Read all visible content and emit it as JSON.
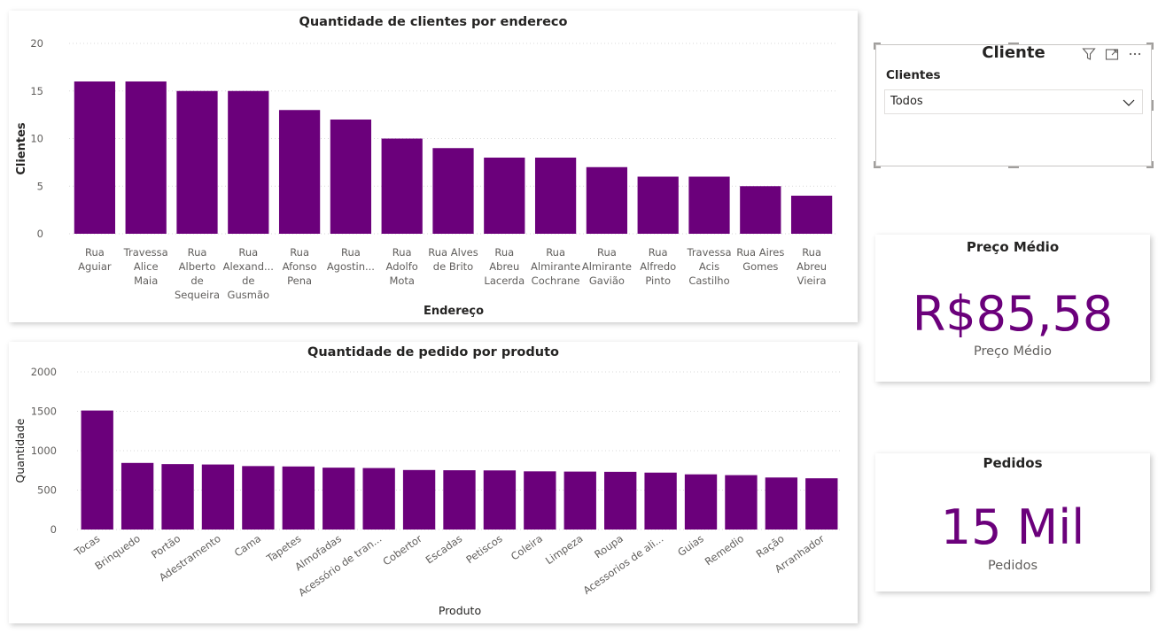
{
  "colors": {
    "bar": "#6b007b",
    "kpi": "#6b007b",
    "grid": "#d9d9d9"
  },
  "chart_data": [
    {
      "type": "bar",
      "title": "Quantidade de clientes por endereco",
      "xlabel": "Endereço",
      "ylabel": "Clientes",
      "ylim": [
        0,
        20
      ],
      "yticks": [
        0,
        5,
        10,
        15,
        20
      ],
      "grid": true,
      "categories": [
        [
          "Rua",
          "Aguiar"
        ],
        [
          "Travessa",
          "Alice",
          "Maia"
        ],
        [
          "Rua",
          "Alberto",
          "de",
          "Sequeira"
        ],
        [
          "Rua",
          "Alexand...",
          "de",
          "Gusmão"
        ],
        [
          "Rua",
          "Afonso",
          "Pena"
        ],
        [
          "Rua",
          "Agostin..."
        ],
        [
          "Rua",
          "Adolfo",
          "Mota"
        ],
        [
          "Rua Alves",
          "de Brito"
        ],
        [
          "Rua",
          "Abreu",
          "Lacerda"
        ],
        [
          "Rua",
          "Almirante",
          "Cochrane"
        ],
        [
          "Rua",
          "Almirante",
          "Gavião"
        ],
        [
          "Rua",
          "Alfredo",
          "Pinto"
        ],
        [
          "Travessa",
          "Acis",
          "Castilho"
        ],
        [
          "Rua Aires",
          "Gomes"
        ],
        [
          "Rua",
          "Abreu",
          "Vieira"
        ]
      ],
      "values": [
        16,
        16,
        15,
        15,
        13,
        12,
        10,
        9,
        8,
        8,
        7,
        6,
        6,
        5,
        4
      ]
    },
    {
      "type": "bar",
      "title": "Quantidade de pedido por produto",
      "xlabel": "Produto",
      "ylabel": "Quantidade",
      "ylim": [
        0,
        2000
      ],
      "yticks": [
        0,
        500,
        1000,
        1500,
        2000
      ],
      "grid": true,
      "categories": [
        "Tocas",
        "Brinquedo",
        "Portão",
        "Adestramento",
        "Cama",
        "Tapetes",
        "Almofadas",
        "Acessório de tran...",
        "Cobertor",
        "Escadas",
        "Petiscos",
        "Coleira",
        "Limpeza",
        "Roupa",
        "Acessorios de ali...",
        "Guias",
        "Remedio",
        "Ração",
        "Arranhador"
      ],
      "values": [
        1510,
        845,
        830,
        825,
        805,
        800,
        785,
        780,
        755,
        752,
        750,
        738,
        735,
        732,
        722,
        700,
        690,
        660,
        650
      ]
    }
  ],
  "slicer": {
    "title": "Cliente",
    "field_label": "Clientes",
    "selected": "Todos"
  },
  "kpis": [
    {
      "title": "Preço Médio",
      "value": "R$85,58",
      "label": "Preço Médio"
    },
    {
      "title": "Pedidos",
      "value": "15 Mil",
      "label": "Pedidos"
    }
  ]
}
